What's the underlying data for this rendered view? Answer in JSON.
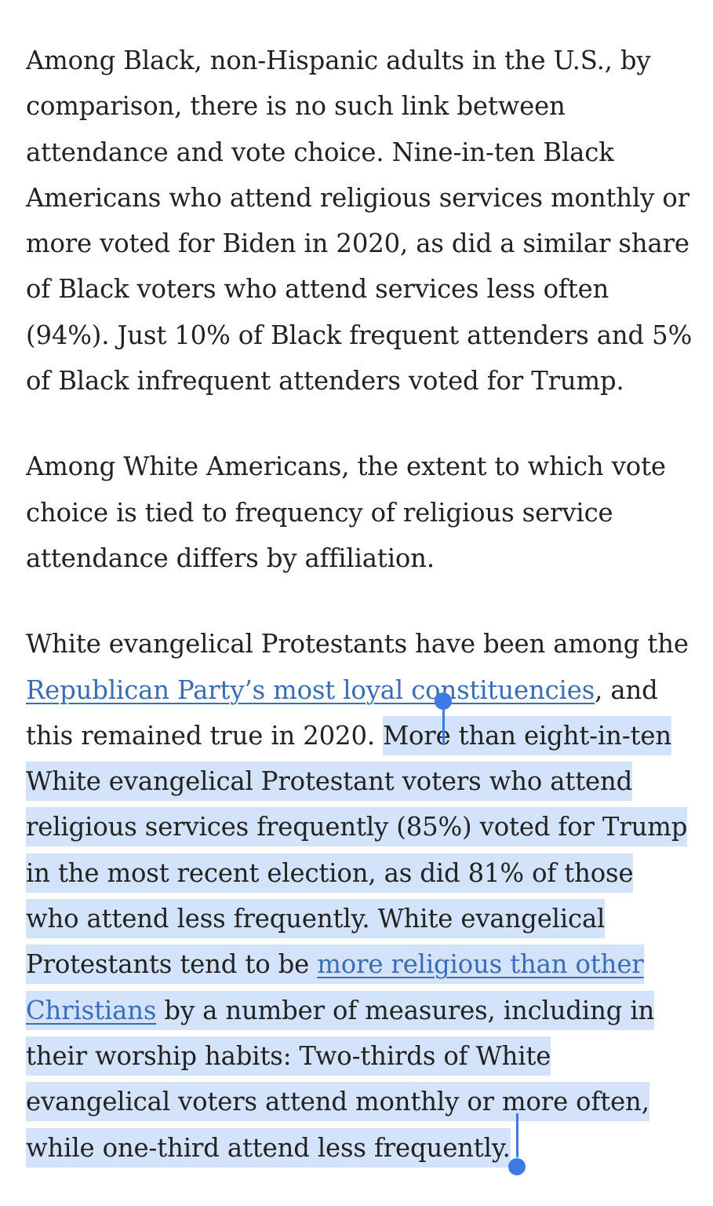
{
  "article": {
    "p1": "Among Black, non-Hispanic adults in the U.S., by comparison, there is no such link between attendance and vote choice. Nine-in-ten Black Americans who attend religious services monthly or more voted for Biden in 2020, as did a similar share of Black voters who attend services less often (94%). Just 10% of Black frequent attenders and 5% of Black infrequent attenders voted for Trump.",
    "p2": "Among White Americans, the extent to which vote choice is tied to frequency of religious service attendance differs by affiliation.",
    "p3": {
      "text_before_link1": "White evangelical Protestants have been among the ",
      "link1": "Republican Party’s most loyal constituencies",
      "text_after_link1": ", and this remained true in 2020. ",
      "selected_before_link2": "More than eight-in-ten White evangelical Protestant voters who attend religious services frequently (85%) voted for Trump in the most recent election, as did 81% of those who attend less frequently. White evangelical Protestants tend to be ",
      "link2": "more religious than other Christians",
      "selected_after_link2": " by a number of measures, including in their worship habits: Two-thirds of White evangelical voters attend monthly or more often, while one-third attend less frequently."
    }
  },
  "colors": {
    "text": "#222222",
    "link": "#3a6db5",
    "selection_highlight": "#d3e3fb",
    "selection_handle": "#3d7ae5"
  }
}
